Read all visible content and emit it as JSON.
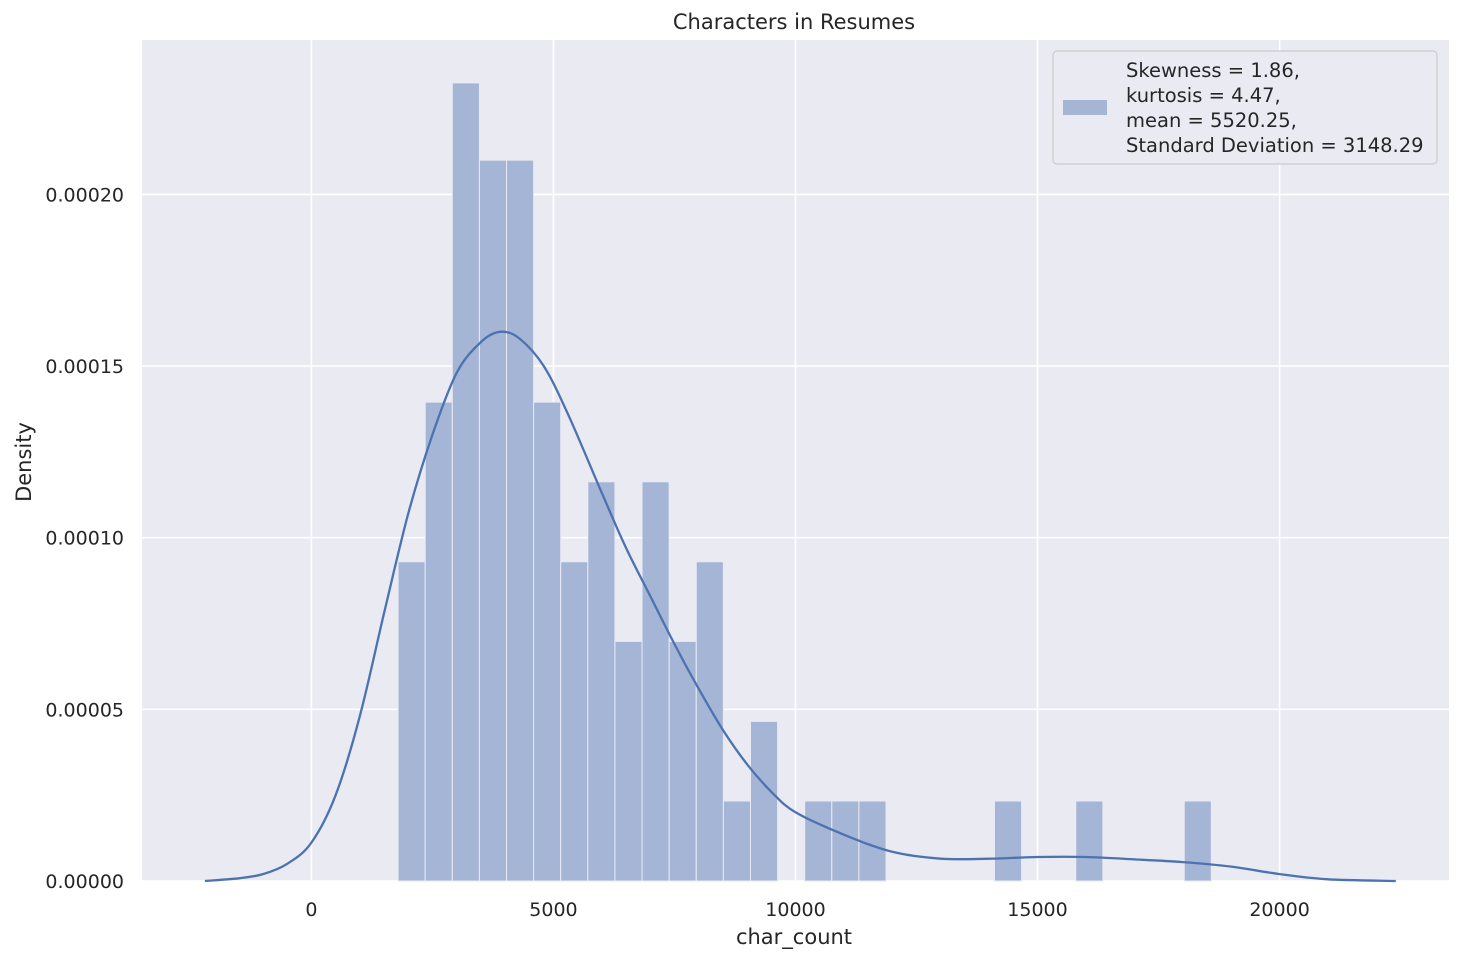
{
  "chart_data": {
    "type": "bar",
    "title": "Characters in Resumes",
    "xlabel": "char_count",
    "ylabel": "Density",
    "xlim": [
      -3500,
      23500
    ],
    "ylim": [
      0,
      0.000245
    ],
    "x_ticks": [
      0,
      5000,
      10000,
      15000,
      20000
    ],
    "x_tick_labels": [
      "0",
      "5000",
      "10000",
      "15000",
      "20000"
    ],
    "y_ticks": [
      0,
      5e-05,
      0.0001,
      0.00015,
      0.0002
    ],
    "y_tick_labels": [
      "0.00000",
      "0.00005",
      "0.00010",
      "0.00015",
      "0.00020"
    ],
    "grid": true,
    "legend_position": "top-right",
    "legend_entries": [
      "Skewness = 1.86,",
      "kurtosis = 4.47,",
      "mean = 5520.25,",
      "Standard Deviation = 3148.29"
    ],
    "colors": {
      "background": "#eaeaf2",
      "grid": "#ffffff",
      "bar": "#a5b5d6",
      "kde": "#4c72b0"
    },
    "bin_edges": [
      1790,
      2350,
      2910,
      3470,
      4030,
      4590,
      5150,
      5710,
      6270,
      6830,
      7390,
      7950,
      8510,
      9070,
      9630,
      10190,
      10750,
      11310,
      11870,
      12430,
      12990,
      13550,
      14110,
      14670,
      15230,
      15790,
      16350,
      16910,
      17470,
      18030,
      18590
    ],
    "histogram": [
      9.3e-05,
      0.0001395,
      0.0002325,
      0.00021,
      0.00021,
      0.0001395,
      9.3e-05,
      0.0001163,
      6.98e-05,
      0.0001163,
      6.98e-05,
      9.3e-05,
      2.33e-05,
      4.65e-05,
      0,
      2.33e-05,
      2.33e-05,
      2.33e-05,
      0,
      0,
      0,
      0,
      2.33e-05,
      0,
      0,
      2.33e-05,
      0,
      0,
      0,
      2.33e-05
    ],
    "kde": {
      "name": "kde",
      "x": [
        -2200,
        -1500,
        -1000,
        -500,
        0,
        500,
        1000,
        1500,
        2000,
        2500,
        3000,
        3500,
        3900,
        4300,
        4800,
        5300,
        6000,
        6500,
        7000,
        7500,
        8000,
        8500,
        9000,
        9500,
        10000,
        11000,
        12000,
        13000,
        14000,
        15000,
        16000,
        17000,
        18000,
        19000,
        20000,
        21000,
        22400
      ],
      "y": [
        0,
        8e-07,
        2e-06,
        5e-06,
        1.12e-05,
        2.5e-05,
        4.8e-05,
        7.8e-05,
        0.000107,
        0.00013,
        0.000148,
        0.000157,
        0.00016,
        0.000158,
        0.00015,
        0.000136,
        0.000113,
        9.7e-05,
        8.3e-05,
        6.9e-05,
        5.6e-05,
        4.4e-05,
        3.4e-05,
        2.6e-05,
        2e-05,
        1.35e-05,
        8.5e-06,
        6.5e-06,
        6.5e-06,
        7e-06,
        7e-06,
        6.3e-06,
        5.5e-06,
        4.2e-06,
        2e-06,
        5e-07,
        0
      ]
    }
  }
}
